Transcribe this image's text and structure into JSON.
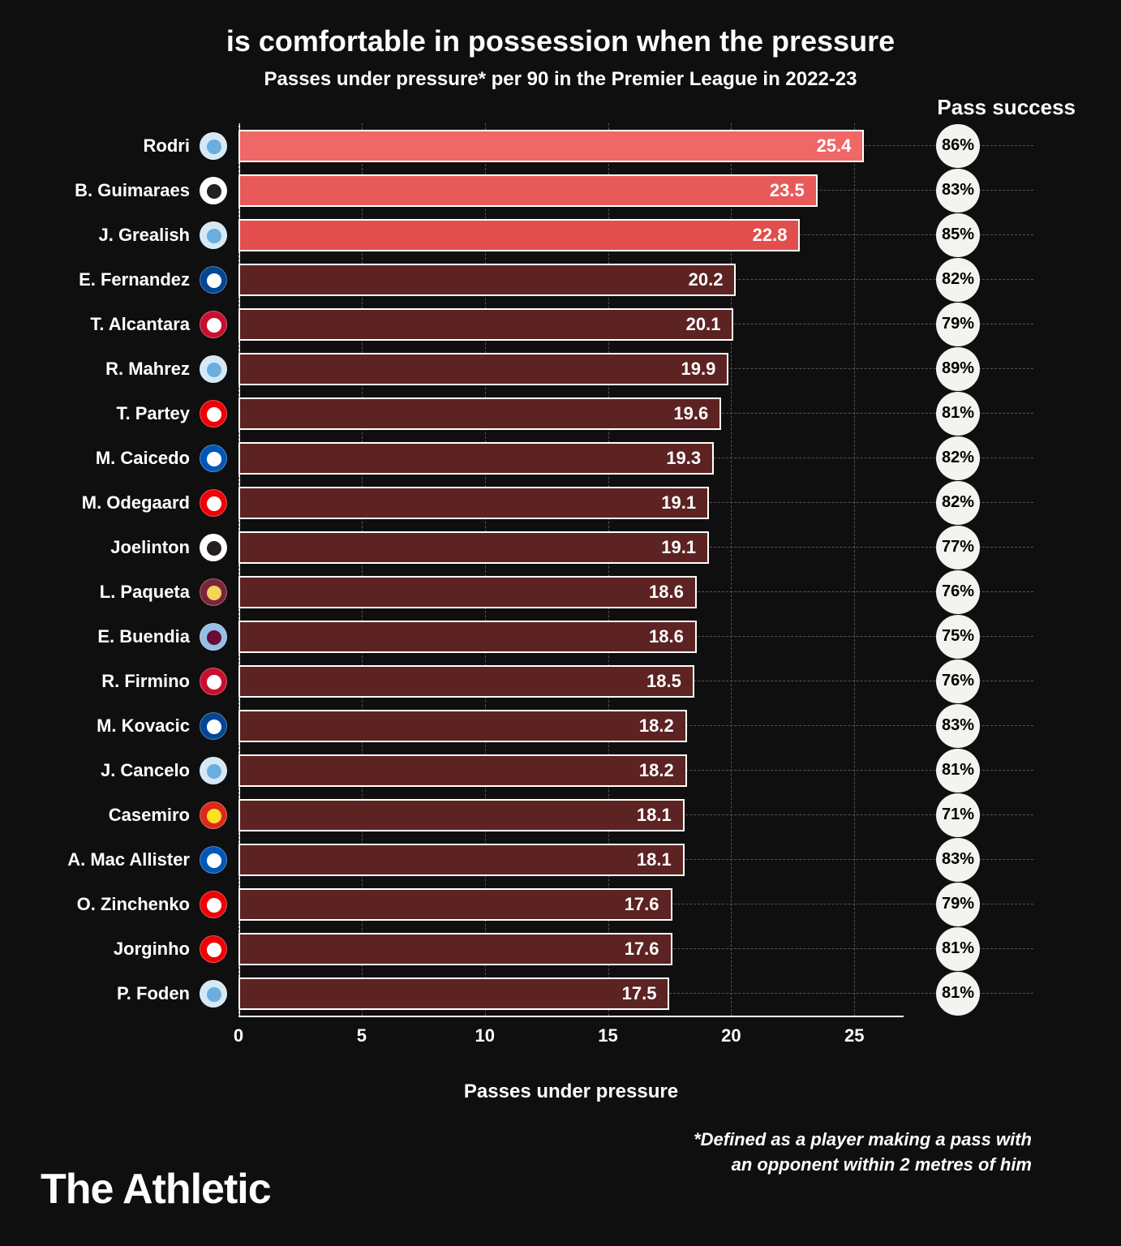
{
  "title": "is comfortable in possession when the pressure",
  "subtitle": "Passes under pressure* per 90 in the Premier League in 2022-23",
  "pass_success_header": "Pass success",
  "x_axis_label": "Passes under pressure",
  "footnote_line1": "*Defined as a player making a pass with",
  "footnote_line2": "an opponent within 2 metres of him",
  "brand": "The Athletic",
  "chart": {
    "type": "bar",
    "x_min": 0,
    "x_max": 27,
    "x_ticks": [
      0,
      5,
      10,
      15,
      20,
      25
    ],
    "bar_area_width": 820,
    "highlight_colors": [
      "#ef6766",
      "#e85a59",
      "#e14e4d"
    ],
    "muted_color": "#5c2322",
    "bar_border": "#ffffff",
    "grid_color": "#555555",
    "background": "#0f0f0f",
    "circle_bg": "#f5f3f0"
  },
  "players": [
    {
      "name": "Rodri",
      "value": 25.4,
      "success": "86%",
      "highlight": true,
      "badge_bg": "#d5e8f5",
      "badge_fg": "#6caddf"
    },
    {
      "name": "B. Guimaraes",
      "value": 23.5,
      "success": "83%",
      "highlight": true,
      "badge_bg": "#ffffff",
      "badge_fg": "#241f20"
    },
    {
      "name": "J. Grealish",
      "value": 22.8,
      "success": "85%",
      "highlight": true,
      "badge_bg": "#d5e8f5",
      "badge_fg": "#6caddf"
    },
    {
      "name": "E. Fernandez",
      "value": 20.2,
      "success": "82%",
      "highlight": false,
      "badge_bg": "#034694",
      "badge_fg": "#ffffff"
    },
    {
      "name": "T. Alcantara",
      "value": 20.1,
      "success": "79%",
      "highlight": false,
      "badge_bg": "#c8102e",
      "badge_fg": "#ffffff"
    },
    {
      "name": "R. Mahrez",
      "value": 19.9,
      "success": "89%",
      "highlight": false,
      "badge_bg": "#d5e8f5",
      "badge_fg": "#6caddf"
    },
    {
      "name": "T. Partey",
      "value": 19.6,
      "success": "81%",
      "highlight": false,
      "badge_bg": "#ef0107",
      "badge_fg": "#ffffff"
    },
    {
      "name": "M. Caicedo",
      "value": 19.3,
      "success": "82%",
      "highlight": false,
      "badge_bg": "#0057b8",
      "badge_fg": "#ffffff"
    },
    {
      "name": "M. Odegaard",
      "value": 19.1,
      "success": "82%",
      "highlight": false,
      "badge_bg": "#ef0107",
      "badge_fg": "#ffffff"
    },
    {
      "name": "Joelinton",
      "value": 19.1,
      "success": "77%",
      "highlight": false,
      "badge_bg": "#ffffff",
      "badge_fg": "#241f20"
    },
    {
      "name": "L. Paqueta",
      "value": 18.6,
      "success": "76%",
      "highlight": false,
      "badge_bg": "#7a263a",
      "badge_fg": "#f3d459"
    },
    {
      "name": "E. Buendia",
      "value": 18.6,
      "success": "75%",
      "highlight": false,
      "badge_bg": "#95bfe5",
      "badge_fg": "#670e36"
    },
    {
      "name": "R. Firmino",
      "value": 18.5,
      "success": "76%",
      "highlight": false,
      "badge_bg": "#c8102e",
      "badge_fg": "#ffffff"
    },
    {
      "name": "M. Kovacic",
      "value": 18.2,
      "success": "83%",
      "highlight": false,
      "badge_bg": "#034694",
      "badge_fg": "#ffffff"
    },
    {
      "name": "J. Cancelo",
      "value": 18.2,
      "success": "81%",
      "highlight": false,
      "badge_bg": "#d5e8f5",
      "badge_fg": "#6caddf"
    },
    {
      "name": "Casemiro",
      "value": 18.1,
      "success": "71%",
      "highlight": false,
      "badge_bg": "#da291c",
      "badge_fg": "#fbe122"
    },
    {
      "name": "A. Mac Allister",
      "value": 18.1,
      "success": "83%",
      "highlight": false,
      "badge_bg": "#0057b8",
      "badge_fg": "#ffffff"
    },
    {
      "name": "O. Zinchenko",
      "value": 17.6,
      "success": "79%",
      "highlight": false,
      "badge_bg": "#ef0107",
      "badge_fg": "#ffffff"
    },
    {
      "name": "Jorginho",
      "value": 17.6,
      "success": "81%",
      "highlight": false,
      "badge_bg": "#ef0107",
      "badge_fg": "#ffffff"
    },
    {
      "name": "P. Foden",
      "value": 17.5,
      "success": "81%",
      "highlight": false,
      "badge_bg": "#d5e8f5",
      "badge_fg": "#6caddf"
    }
  ]
}
